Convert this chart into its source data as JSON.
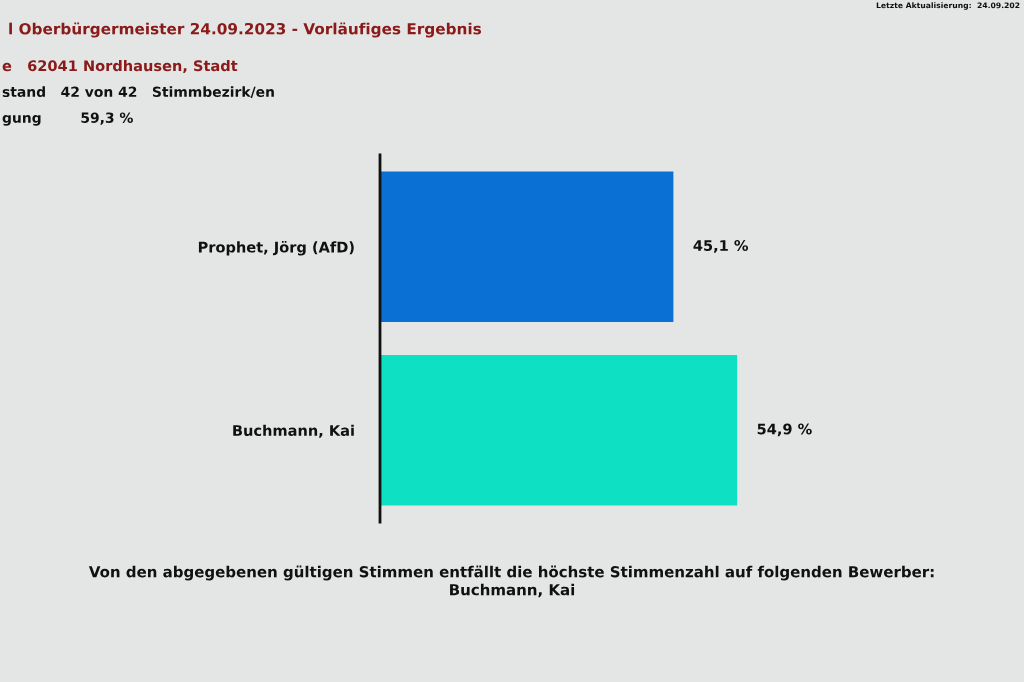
{
  "chart_data": {
    "type": "bar",
    "orientation": "horizontal",
    "title": "l Oberbürgermeister 24.09.2023 - Vorläufiges Ergebnis",
    "subtitle": "e   62041 Nordhausen, Stadt",
    "categories": [
      "Prophet, Jörg (AfD)",
      "Buchmann, Kai"
    ],
    "values": [
      45.1,
      54.9
    ],
    "colors": [
      "#0b70d3",
      "#0ee0c4"
    ],
    "value_labels": [
      "45,1 %",
      "54,9 %"
    ],
    "tick_labels": "y",
    "annotations": [
      "stand   42 von 42   Stimmbezirk/en",
      "gung        59,3 %",
      "Letzte Aktualisierung:  24.09.202",
      "Von den abgegebenen gültigen Stimmen entfällt die höchste Stimmenzahl auf folgenden Bewerber:",
      "Buchmann, Kai"
    ]
  }
}
